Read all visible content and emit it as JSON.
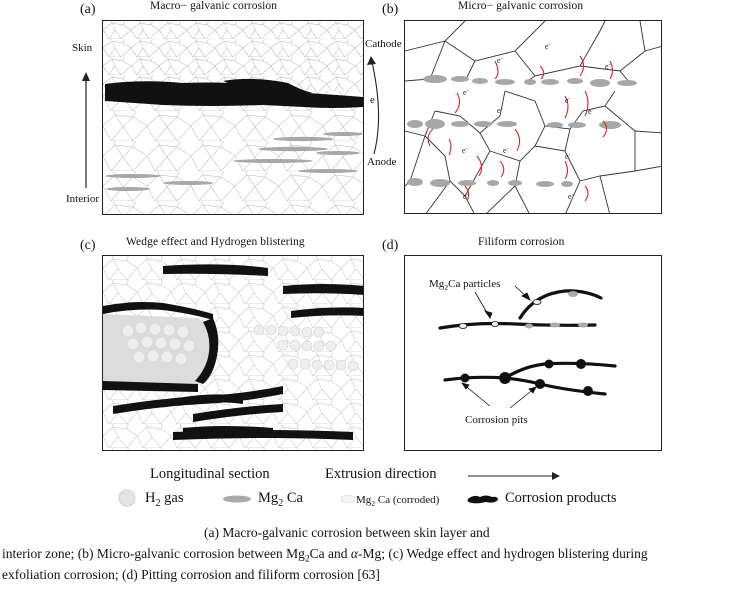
{
  "panels": {
    "a": {
      "label": "(a)",
      "title": "Macro− galvanic corrosion",
      "skin": "Skin",
      "interior": "Interior",
      "cathode": "Cathode",
      "anode": "Anode",
      "electron": "e"
    },
    "b": {
      "label": "(b)",
      "title": "Micro− galvanic corrosion",
      "electron": "e",
      "minus": "-"
    },
    "c": {
      "label": "(c)",
      "title": "Wedge effect and Hydrogen blistering"
    },
    "d": {
      "label": "(d)",
      "title": "Filiform corrosion",
      "particles_label_main": "Mg",
      "particles_label_sub": "2",
      "particles_label_tail": "Ca particles",
      "pits_label": "Corrosion pits"
    }
  },
  "legend": {
    "longitudinal": "Longitudinal section",
    "extrusion": "Extrusion direction",
    "arrow": "⟶",
    "h2_main": "H",
    "h2_sub": "2",
    "h2_tail": " gas",
    "mg2ca_main": "Mg",
    "mg2ca_sub": "2",
    "mg2ca_tail": " Ca",
    "corroded_main": "Mg",
    "corroded_sub": "2",
    "corroded_tail": " Ca (corroded)",
    "products": "Corrosion products"
  },
  "caption": {
    "line1": "(a) Macro-galvanic corrosion between skin layer and",
    "line2_a": "interior zone; (b) Micro-galvanic corrosion between Mg",
    "line2_sub": "2",
    "line2_b": "Ca and ",
    "line2_alpha": "α",
    "line2_c": "-Mg; (c) Wedge effect and hydrogen blistering during",
    "line3": "exfoliation corrosion; (d) Pitting corrosion and filiform corrosion [63]"
  },
  "colors": {
    "products": "#111111",
    "particles": "#b5b5b5",
    "arrows": "#d22",
    "grain": "#bdbdbd"
  }
}
